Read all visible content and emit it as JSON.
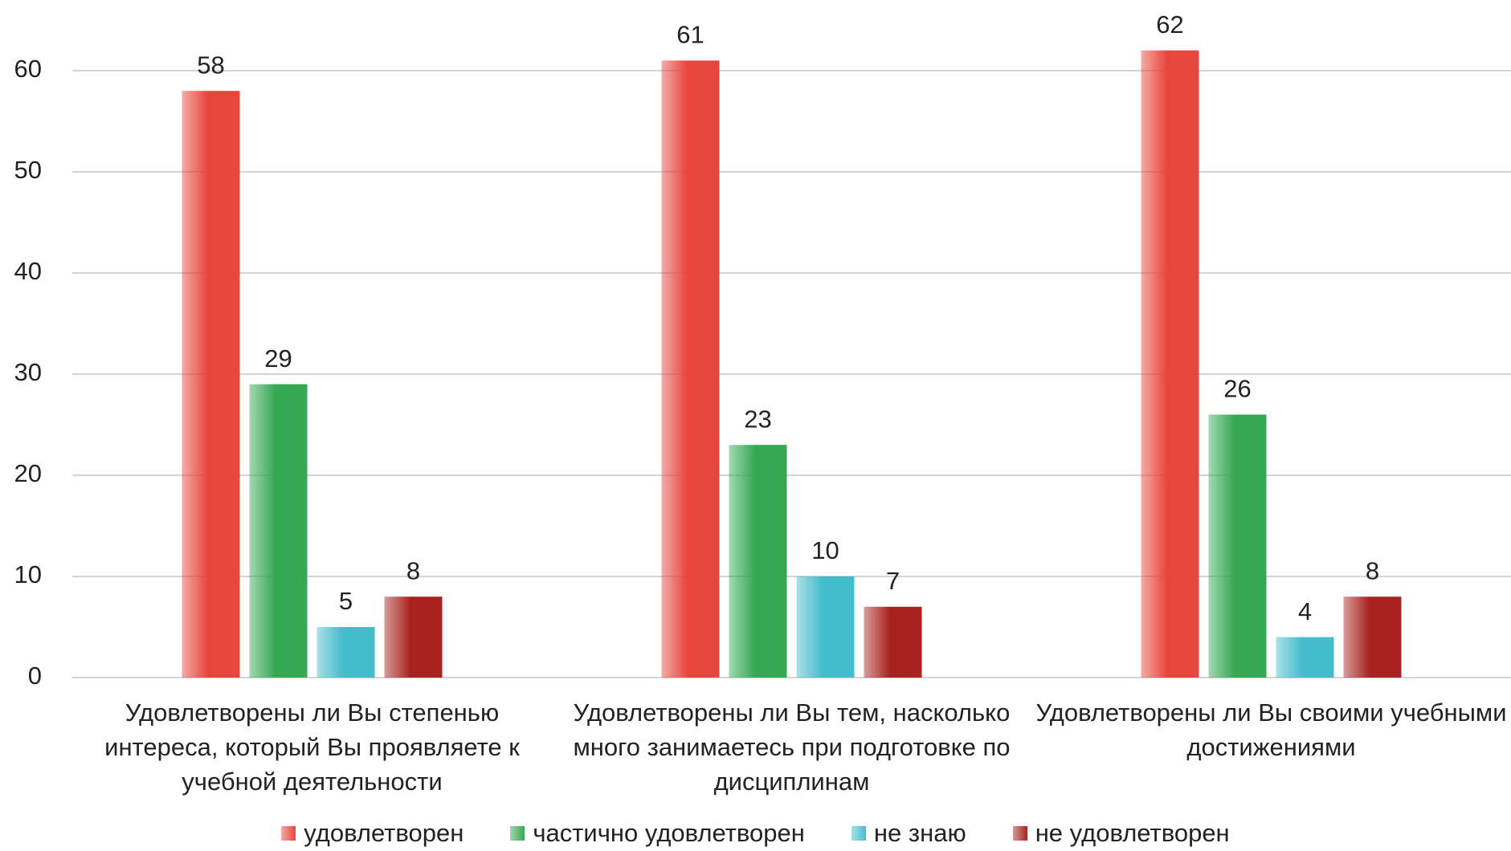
{
  "chart_data": {
    "type": "bar",
    "categories": [
      "Удовлетворены ли Вы степенью интереса, который Вы проявляете к учебной деятельности",
      "Удовлетворены ли Вы тем, насколько много занимаетесь при подготовке по дисциплинам",
      "Удовлетворены ли Вы своими учебными достижениями"
    ],
    "series": [
      {
        "name": "удовлетворен",
        "color": "#e8453c",
        "values": [
          58,
          61,
          62
        ]
      },
      {
        "name": "частично удовлетворен",
        "color": "#34a853",
        "values": [
          29,
          23,
          26
        ]
      },
      {
        "name": "не знаю",
        "color": "#45bccc",
        "values": [
          5,
          10,
          4
        ]
      },
      {
        "name": "не удовлетворен",
        "color": "#a8231f",
        "values": [
          8,
          7,
          8
        ]
      }
    ],
    "ylim": [
      0,
      65
    ],
    "yticks": [
      0,
      10,
      20,
      30,
      40,
      50,
      60
    ],
    "grid": true,
    "legend": "bottom"
  }
}
